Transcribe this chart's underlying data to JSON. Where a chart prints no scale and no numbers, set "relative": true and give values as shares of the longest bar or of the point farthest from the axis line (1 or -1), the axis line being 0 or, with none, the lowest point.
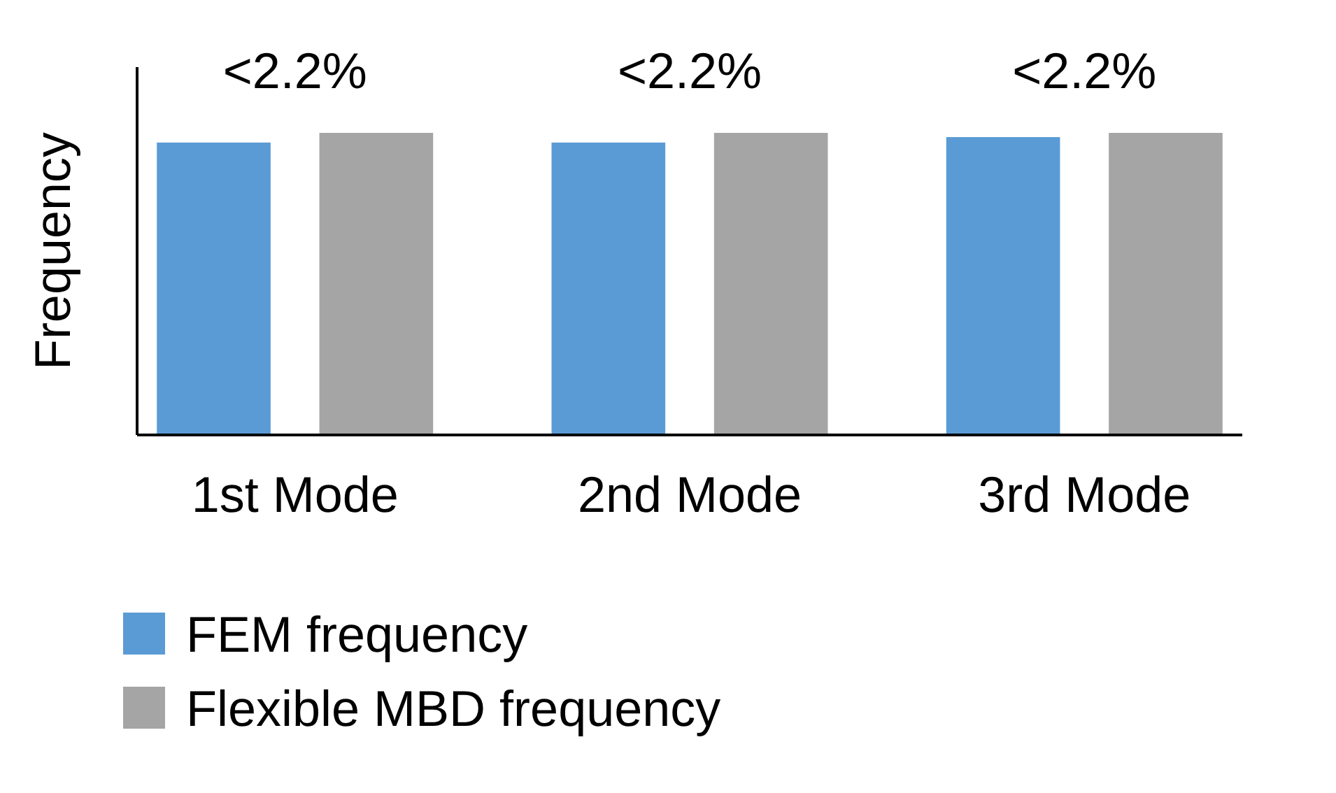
{
  "chart_data": {
    "type": "bar",
    "relative": true,
    "ylabel": "Frequency",
    "categories": [
      "1st Mode",
      "2nd Mode",
      "3rd Mode"
    ],
    "series": [
      {
        "name": "FEM frequency",
        "color": "#5b9bd5",
        "values": [
          0.968,
          0.968,
          0.986
        ]
      },
      {
        "name": "Flexible MBD frequency",
        "color": "#a5a5a5",
        "values": [
          1,
          1,
          1
        ]
      }
    ],
    "annotations": [
      "<2.2%",
      "<2.2%",
      "<2.2%"
    ],
    "legend": "bottom"
  }
}
